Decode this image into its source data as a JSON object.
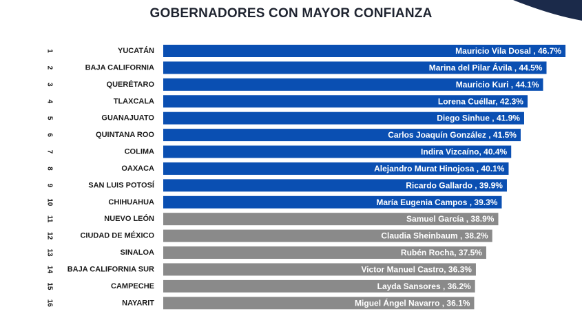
{
  "chart_data": {
    "type": "bar",
    "orientation": "horizontal",
    "title": "GOBERNADORES CON MAYOR CONFIANZA",
    "xlim": [
      0,
      46.7
    ],
    "colors": {
      "top10": "#0a4fb2",
      "rest": "#8a8a8a",
      "accent": "#1b2a4a"
    },
    "bars": [
      {
        "rank": "1",
        "state": "YUCATÁN",
        "label": "Mauricio Vila Dosal , 46.7%",
        "value": 46.7
      },
      {
        "rank": "2",
        "state": "BAJA CALIFORNIA",
        "label": "Marina del Pilar Ávila , 44.5%",
        "value": 44.5
      },
      {
        "rank": "3",
        "state": "QUERÉTARO",
        "label": "Mauricio Kuri , 44.1%",
        "value": 44.1
      },
      {
        "rank": "4",
        "state": "TLAXCALA",
        "label": "Lorena Cuéllar, 42.3%",
        "value": 42.3
      },
      {
        "rank": "5",
        "state": "GUANAJUATO",
        "label": "Diego Sinhue , 41.9%",
        "value": 41.9
      },
      {
        "rank": "6",
        "state": "QUINTANA ROO",
        "label": "Carlos Joaquín González , 41.5%",
        "value": 41.5
      },
      {
        "rank": "7",
        "state": "COLIMA",
        "label": "Indira Vizcaíno, 40.4%",
        "value": 40.4
      },
      {
        "rank": "8",
        "state": "OAXACA",
        "label": "Alejandro Murat Hinojosa , 40.1%",
        "value": 40.1
      },
      {
        "rank": "9",
        "state": "SAN LUIS POTOSÍ",
        "label": "Ricardo Gallardo , 39.9%",
        "value": 39.9
      },
      {
        "rank": "10",
        "state": "CHIHUAHUA",
        "label": "María Eugenia Campos , 39.3%",
        "value": 39.3
      },
      {
        "rank": "11",
        "state": "NUEVO LEÓN",
        "label": "Samuel García , 38.9%",
        "value": 38.9
      },
      {
        "rank": "12",
        "state": "CIUDAD DE MÉXICO",
        "label": "Claudia Sheinbaum , 38.2%",
        "value": 38.2
      },
      {
        "rank": "13",
        "state": "SINALOA",
        "label": "Rubén Rocha, 37.5%",
        "value": 37.5
      },
      {
        "rank": "14",
        "state": "BAJA CALIFORNIA SUR",
        "label": "Victor Manuel Castro, 36.3%",
        "value": 36.3
      },
      {
        "rank": "15",
        "state": "CAMPECHE",
        "label": "Layda Sansores , 36.2%",
        "value": 36.2
      },
      {
        "rank": "16",
        "state": "NAYARIT",
        "label": "Miguel Ángel Navarro , 36.1%",
        "value": 36.1
      }
    ]
  }
}
